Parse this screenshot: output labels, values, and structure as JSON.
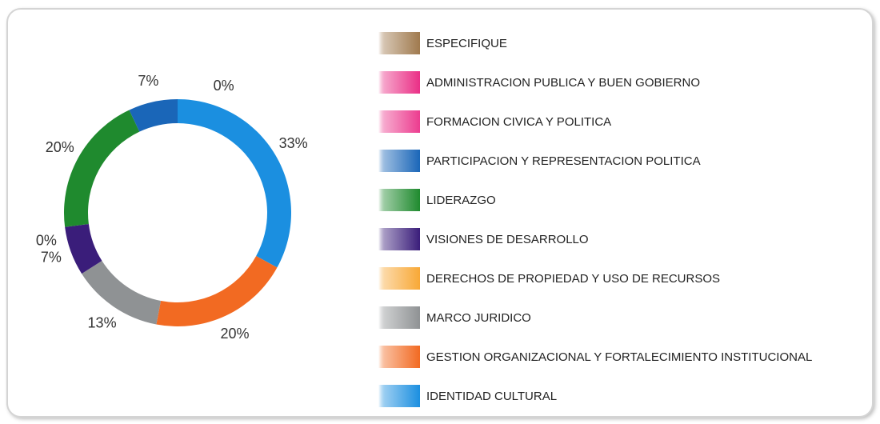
{
  "chart_data": {
    "type": "donut",
    "categories": [
      "ESPECIFIQUE",
      "ADMINISTRACION PUBLICA Y BUEN GOBIERNO",
      "FORMACION CIVICA Y POLITICA",
      "PARTICIPACION Y REPRESENTACION POLITICA",
      "LIDERAZGO",
      "VISIONES DE DESARROLLO",
      "DERECHOS DE PROPIEDAD Y USO DE RECURSOS",
      "MARCO JURIDICO",
      "GESTION ORGANIZACIONAL Y FORTALECIMIENTO INSTITUCIONAL",
      "IDENTIDAD CULTURAL"
    ],
    "values": [
      0,
      0,
      0,
      7,
      20,
      7,
      0,
      13,
      20,
      33
    ],
    "value_labels": [
      null,
      null,
      "0%",
      "7%",
      "20%",
      "7%",
      "0%",
      "13%",
      "20%",
      "33%"
    ],
    "colors": [
      "#a07a4e",
      "#ea2f86",
      "#ec3c8f",
      "#1a66b8",
      "#1f8a2e",
      "#3a1d7a",
      "#f8a836",
      "#8f9294",
      "#f26a22",
      "#1b8fe0"
    ]
  }
}
